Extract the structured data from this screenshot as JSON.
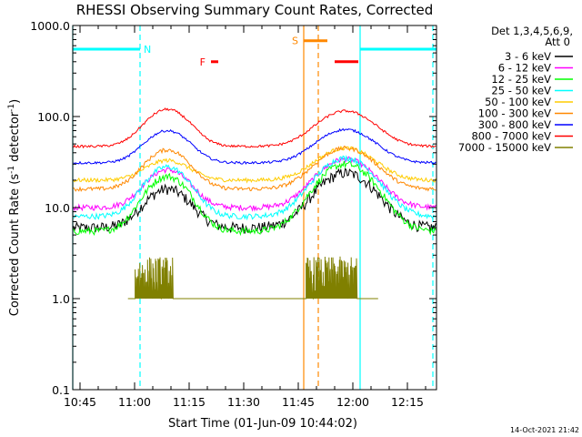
{
  "chart_data": {
    "type": "line",
    "title": "RHESSI Observing Summary Count Rates, Corrected",
    "xlabel": "Start Time (01-Jun-09 10:44:02)",
    "ylabel_main": "Corrected Count Rate (s",
    "ylabel_sup1": "-1",
    "ylabel_mid": " detector",
    "ylabel_sup2": "-1",
    "ylabel_end": ")",
    "ylog": true,
    "ylim": [
      0.1,
      1000
    ],
    "xlim": [
      "10:43:00",
      "12:23:00"
    ],
    "xlim_min": [
      643,
      743
    ],
    "yticks": [
      {
        "v": 1000,
        "label": "1000.0"
      },
      {
        "v": 100,
        "label": "100.0"
      },
      {
        "v": 10,
        "label": "10.0"
      },
      {
        "v": 1,
        "label": "1.0"
      },
      {
        "v": 0.1,
        "label": "0.1"
      }
    ],
    "xticks": [
      {
        "m": 645,
        "label": "10:45"
      },
      {
        "m": 660,
        "label": "11:00"
      },
      {
        "m": 675,
        "label": "11:15"
      },
      {
        "m": 690,
        "label": "11:30"
      },
      {
        "m": 705,
        "label": "11:45"
      },
      {
        "m": 720,
        "label": "12:00"
      },
      {
        "m": 735,
        "label": "12:15"
      }
    ],
    "legend": {
      "header1": "Det 1,3,4,5,6,9,",
      "header2": "Att 0",
      "placement": "right"
    },
    "series": [
      {
        "name": "3 - 6 keV",
        "color": "#000000",
        "base": 6,
        "peak1": 16,
        "peak2": 24,
        "noise": 0.14
      },
      {
        "name": "6 - 12 keV",
        "color": "#ff00ff",
        "base": 10,
        "peak1": 26,
        "peak2": 34,
        "noise": 0.07
      },
      {
        "name": "12 - 25 keV",
        "color": "#00ff00",
        "base": 5.5,
        "peak1": 22,
        "peak2": 30,
        "noise": 0.09
      },
      {
        "name": "25 - 50 keV",
        "color": "#00ffff",
        "base": 8,
        "peak1": 28,
        "peak2": 35,
        "noise": 0.07
      },
      {
        "name": "50 - 100 keV",
        "color": "#ffcc00",
        "base": 20,
        "peak1": 33,
        "peak2": 45,
        "noise": 0.05
      },
      {
        "name": "100 - 300 keV",
        "color": "#ff8800",
        "base": 16,
        "peak1": 43,
        "peak2": 45,
        "noise": 0.05
      },
      {
        "name": "300 - 800 keV",
        "color": "#0000ff",
        "base": 31,
        "peak1": 70,
        "peak2": 72,
        "noise": 0.03
      },
      {
        "name": "800 - 7000 keV",
        "color": "#ff0000",
        "base": 47,
        "peak1": 120,
        "peak2": 115,
        "noise": 0.03
      },
      {
        "name": "7000 - 15000 keV",
        "color": "#808000",
        "base": 1,
        "peak1": 2.8,
        "peak2": 2.8,
        "noise": 0.5
      }
    ],
    "flags": [
      {
        "label": "",
        "color": "#00ffff",
        "from": 643,
        "to": 661.5,
        "v": 550
      },
      {
        "label": "N",
        "color": "#00ffff",
        "from": 661.5,
        "to": 661.5,
        "v": 550
      },
      {
        "label": "",
        "color": "#00ffff",
        "from": 722,
        "to": 743,
        "v": 550
      },
      {
        "label": "S",
        "color": "#ff8800",
        "from": 706.5,
        "to": 713,
        "v": 680
      },
      {
        "label": "F",
        "color": "#ff0000",
        "from": 681,
        "to": 683,
        "v": 400
      },
      {
        "label": "",
        "color": "#ff0000",
        "from": 715,
        "to": 721.5,
        "v": 400
      }
    ],
    "vlines": [
      {
        "m": 643,
        "color": "#00ffff",
        "dashed": false
      },
      {
        "m": 661.5,
        "color": "#00ffff",
        "dashed": true
      },
      {
        "m": 706.5,
        "color": "#ff8800",
        "dashed": false
      },
      {
        "m": 710.5,
        "color": "#ff8800",
        "dashed": true
      },
      {
        "m": 722,
        "color": "#00ffff",
        "dashed": false
      },
      {
        "m": 742,
        "color": "#00ffff",
        "dashed": true
      }
    ],
    "footer_date": "14-Oct-2021 21:42"
  }
}
